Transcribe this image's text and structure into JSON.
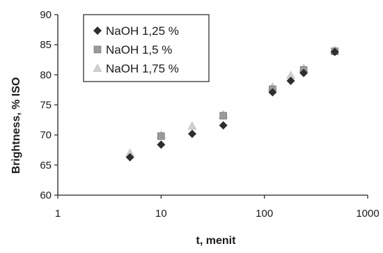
{
  "chart_data": {
    "type": "scatter",
    "title": "",
    "xlabel": "t, menit",
    "ylabel": "Brightness, % ISO",
    "xscale": "log",
    "xlim": [
      1,
      1000
    ],
    "ylim": [
      60,
      90
    ],
    "xticks": [
      1,
      10,
      100,
      1000
    ],
    "xtick_labels": [
      "1",
      "10",
      "100",
      "1000"
    ],
    "yticks": [
      60,
      65,
      70,
      75,
      80,
      85,
      90
    ],
    "ytick_labels": [
      "60",
      "65",
      "70",
      "75",
      "80",
      "85",
      "90"
    ],
    "grid": false,
    "legend_position": "top-left",
    "series": [
      {
        "name": "NaOH 1,25 %",
        "marker": "diamond",
        "color": "#2e2e2e",
        "points": [
          {
            "x": 5,
            "y": 66.3
          },
          {
            "x": 10,
            "y": 68.4
          },
          {
            "x": 20,
            "y": 70.2
          },
          {
            "x": 40,
            "y": 71.6
          },
          {
            "x": 120,
            "y": 77.1
          },
          {
            "x": 180,
            "y": 79.0
          },
          {
            "x": 240,
            "y": 80.3
          },
          {
            "x": 480,
            "y": 83.8
          }
        ]
      },
      {
        "name": "NaOH 1,5 %",
        "marker": "square",
        "color": "#9a9a9a",
        "points": [
          {
            "x": 10,
            "y": 69.8
          },
          {
            "x": 40,
            "y": 73.2
          },
          {
            "x": 120,
            "y": 77.6
          },
          {
            "x": 240,
            "y": 80.8
          },
          {
            "x": 480,
            "y": 83.9
          }
        ]
      },
      {
        "name": "NaOH 1,75 %",
        "marker": "triangle",
        "color": "#d0d0d0",
        "points": [
          {
            "x": 5,
            "y": 67.0
          },
          {
            "x": 10,
            "y": 70.0
          },
          {
            "x": 20,
            "y": 71.5
          },
          {
            "x": 40,
            "y": 73.4
          },
          {
            "x": 120,
            "y": 78.0
          },
          {
            "x": 180,
            "y": 79.9
          },
          {
            "x": 240,
            "y": 81.1
          },
          {
            "x": 480,
            "y": 84.1
          }
        ]
      }
    ]
  }
}
